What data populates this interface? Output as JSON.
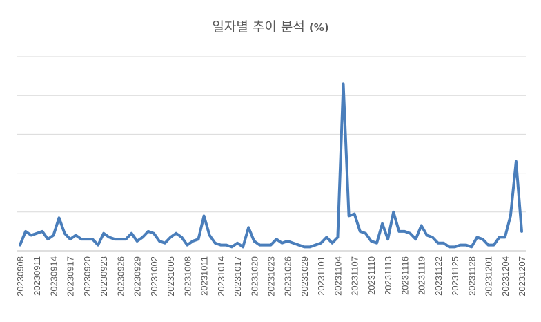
{
  "chart_data": {
    "type": "line",
    "title": "일자별 추이 분석",
    "title_unit": "(%)",
    "xlabel": "",
    "ylabel": "",
    "ylim": [
      0,
      100
    ],
    "grid": true,
    "legend": "none",
    "tick_labels": [
      "20230908",
      "20230911",
      "20230914",
      "20230917",
      "20230920",
      "20230923",
      "20230926",
      "20230929",
      "20231002",
      "20231005",
      "20231008",
      "20231011",
      "20231014",
      "20231017",
      "20231020",
      "20231023",
      "20231026",
      "20231029",
      "20231101",
      "20231104",
      "20231107",
      "20231110",
      "20231113",
      "20231116",
      "20231119",
      "20231122",
      "20231125",
      "20231128",
      "20231201",
      "20231204",
      "20231207"
    ],
    "tick_every": 3,
    "series": [
      {
        "color": "#4a7ebb",
        "values": [
          3,
          10,
          8,
          9,
          10,
          6,
          8,
          17,
          9,
          6,
          8,
          6,
          6,
          6,
          3,
          9,
          7,
          6,
          6,
          6,
          9,
          5,
          7,
          10,
          9,
          5,
          4,
          7,
          9,
          7,
          3,
          5,
          6,
          18,
          8,
          4,
          3,
          3,
          2,
          4,
          2,
          12,
          5,
          3,
          3,
          3,
          6,
          4,
          5,
          4,
          3,
          2,
          2,
          3,
          4,
          7,
          4,
          7,
          86,
          18,
          19,
          10,
          9,
          5,
          4,
          14,
          6,
          20,
          10,
          10,
          9,
          6,
          13,
          8,
          7,
          4,
          4,
          2,
          2,
          3,
          3,
          2,
          7,
          6,
          3,
          3,
          7,
          7,
          18,
          46,
          10
        ]
      }
    ]
  }
}
